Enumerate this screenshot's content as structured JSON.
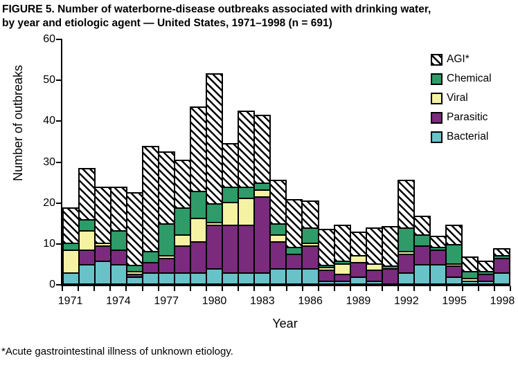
{
  "title": {
    "line1": "FIGURE 5.  Number of waterborne-disease outbreaks associated with drinking water,",
    "line2": "by year and etiologic agent — United States, 1971–1998 (n = 691)"
  },
  "footnote": "*Acute gastrointestinal illness of unknown etiology.",
  "chart_data": {
    "type": "bar",
    "stacked": true,
    "title": "FIGURE 5. Number of waterborne-disease outbreaks associated with drinking water, by year and etiologic agent — United States, 1971–1998 (n = 691)",
    "xlabel": "Year",
    "ylabel": "Number of outbreaks",
    "ylim": [
      0,
      60
    ],
    "ytick_step": 10,
    "grid": false,
    "legend_position": "top-right-inside",
    "categories": [
      1971,
      1972,
      1973,
      1974,
      1975,
      1976,
      1977,
      1978,
      1979,
      1980,
      1981,
      1982,
      1983,
      1984,
      1985,
      1986,
      1987,
      1988,
      1989,
      1990,
      1991,
      1992,
      1993,
      1994,
      1995,
      1996,
      1997,
      1998
    ],
    "x_tick_labels": [
      "1971",
      "1974",
      "1977",
      "1980",
      "1983",
      "1986",
      "1989",
      "1992",
      "1995",
      "1998"
    ],
    "series": [
      {
        "name": "Bacterial",
        "color": "#68c3c9",
        "values": [
          3,
          5,
          6,
          5,
          2,
          3,
          3,
          3,
          3,
          4,
          3,
          3,
          3,
          4,
          4,
          4,
          1,
          1,
          2,
          1,
          0,
          3,
          5,
          5,
          2,
          1,
          1,
          3
        ]
      },
      {
        "name": "Parasitic",
        "color": "#7a2b7d",
        "values": [
          0,
          4,
          4,
          4,
          1,
          3,
          4,
          7,
          8,
          11,
          12,
          12,
          19,
          7,
          4,
          6,
          3,
          2,
          4,
          3,
          4,
          5,
          5,
          4,
          3,
          0,
          2,
          4
        ]
      },
      {
        "name": "Viral",
        "color": "#f5f2a4",
        "values": [
          6,
          5,
          1,
          0,
          1,
          0,
          1,
          3,
          6,
          1,
          6,
          7,
          2,
          2,
          0,
          1,
          1,
          3,
          2,
          2,
          0,
          1,
          0,
          0,
          1,
          1,
          0,
          0
        ]
      },
      {
        "name": "Chemical",
        "color": "#2e9b68",
        "values": [
          2,
          3,
          0,
          5,
          2,
          3,
          8,
          7,
          7,
          5,
          4,
          3,
          2,
          3,
          2,
          4,
          1,
          1,
          0,
          0,
          1,
          6,
          3,
          1,
          5,
          2,
          1,
          1
        ]
      },
      {
        "name": "AGI",
        "color": "hatch",
        "values": [
          9,
          13,
          14,
          11,
          18,
          26,
          18,
          12,
          21,
          32,
          11,
          19,
          17,
          11,
          12,
          7,
          9,
          9,
          6,
          9,
          10,
          12,
          5,
          3,
          5,
          4,
          3,
          2
        ]
      }
    ],
    "legend": [
      {
        "label": "AGI*",
        "color": "hatch"
      },
      {
        "label": "Chemical",
        "color": "#2e9b68"
      },
      {
        "label": "Viral",
        "color": "#f5f2a4"
      },
      {
        "label": "Parasitic",
        "color": "#7a2b7d"
      },
      {
        "label": "Bacterial",
        "color": "#68c3c9"
      }
    ],
    "total_outbreaks": 691
  }
}
